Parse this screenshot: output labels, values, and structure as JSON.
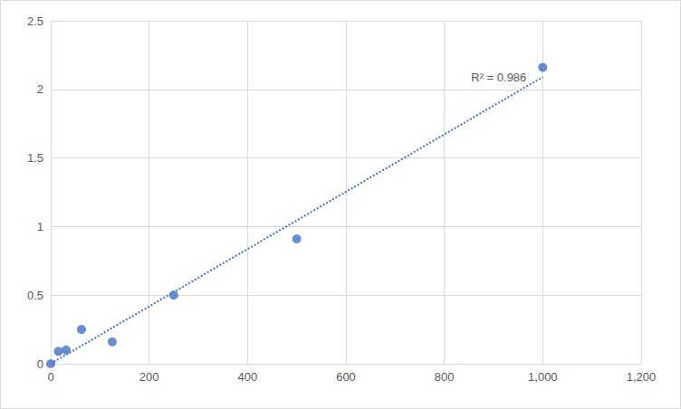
{
  "chart_data": {
    "type": "scatter",
    "x": [
      0,
      15.6,
      31.25,
      62.5,
      125,
      250,
      500,
      1000
    ],
    "series": [
      {
        "type": "scatter",
        "marker": "circle",
        "color": "#4472c4",
        "values": [
          0,
          0.09,
          0.1,
          0.25,
          0.16,
          0.5,
          0.91,
          2.16
        ]
      },
      {
        "type": "line",
        "line_style": "dotted",
        "color": "#4472c4",
        "x": [
          0,
          1000
        ],
        "values": [
          0,
          2.09
        ]
      }
    ],
    "annotations": [
      "R² = 0.986"
    ],
    "xlim": [
      0,
      1200
    ],
    "xticks": [
      0,
      200,
      400,
      600,
      800,
      1000,
      1200
    ],
    "ylim": [
      0,
      2.5
    ],
    "yticks": [
      0,
      0.5,
      1,
      1.5,
      2,
      2.5
    ],
    "grid": true
  }
}
